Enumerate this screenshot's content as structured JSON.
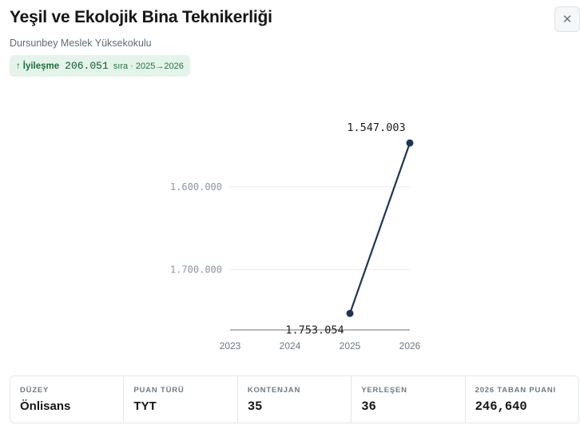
{
  "header": {
    "title": "Yeşil ve Ekolojik Bina Teknikerliği",
    "subtitle": "Dursunbey Meslek Yüksekokulu",
    "close_glyph": "✕"
  },
  "badge": {
    "arrow": "↑",
    "label": "İyileşme",
    "value": "206.051",
    "suffix": "sıra · 2025→2026",
    "color": "#1f6b3c"
  },
  "chart_data": {
    "type": "line",
    "x": [
      "2023",
      "2024",
      "2025",
      "2026"
    ],
    "y_ticks": [
      1600000,
      1700000
    ],
    "y_tick_labels": [
      "1.600.000",
      "1.700.000"
    ],
    "y_inverted": true,
    "ylim": [
      1548000,
      1773000
    ],
    "series": [
      {
        "points": [
          {
            "x": "2025",
            "y": 1753054,
            "label": "1.753.054"
          },
          {
            "x": "2026",
            "y": 1547003,
            "label": "1.547.003"
          }
        ],
        "color": "#1f3557"
      }
    ],
    "grid": true
  },
  "stats": [
    {
      "label": "DÜZEY",
      "value": "Önlisans"
    },
    {
      "label": "PUAN TÜRÜ",
      "value": "TYT"
    },
    {
      "label": "KONTENJAN",
      "value": "35"
    },
    {
      "label": "YERLEŞEN",
      "value": "36"
    },
    {
      "label": "2026 TABAN PUANI",
      "value": "246,640"
    }
  ]
}
